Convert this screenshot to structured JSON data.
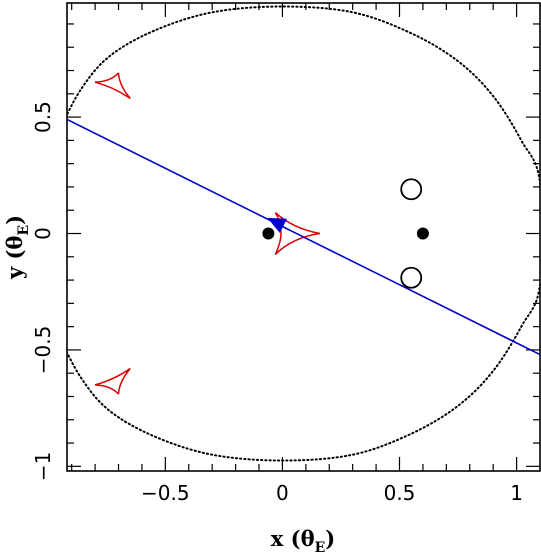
{
  "chart_data": {
    "type": "scatter",
    "title": "",
    "xlim": [
      -0.92,
      1.1
    ],
    "ylim": [
      -1.02,
      0.99
    ],
    "x_ticks": [
      {
        "value": -0.5,
        "label": "−0.5"
      },
      {
        "value": 0,
        "label": "0"
      },
      {
        "value": 0.5,
        "label": "0.5"
      },
      {
        "value": 1,
        "label": "1"
      }
    ],
    "y_ticks": [
      {
        "value": -1,
        "label": "−1"
      },
      {
        "value": -0.5,
        "label": "−0.5"
      },
      {
        "value": 0,
        "label": "0"
      },
      {
        "value": 0.5,
        "label": "0.5"
      }
    ],
    "xlabel": {
      "main": "x (θ",
      "sub": "E",
      "close": ")"
    },
    "ylabel": {
      "main": "y (θ",
      "sub": "E",
      "close": ")"
    },
    "lens_positions": [
      {
        "x": -0.06,
        "y": 0.0
      },
      {
        "x": 0.6,
        "y": 0.0
      }
    ],
    "open_circles": [
      {
        "x": 0.55,
        "y": 0.19
      },
      {
        "x": 0.55,
        "y": -0.19
      }
    ],
    "trajectory": {
      "color": "#0000cc",
      "points": [
        [
          -0.92,
          0.49
        ],
        [
          1.1,
          -0.52
        ]
      ],
      "arrow": {
        "x": -0.03,
        "y": 0.05
      }
    },
    "caustics": [
      {
        "name": "central",
        "color": "#dd0000",
        "cusps": [
          [
            -0.03,
            0.09
          ],
          [
            0.16,
            0.0
          ],
          [
            -0.03,
            -0.09
          ],
          [
            -0.01,
            0.02
          ]
        ]
      },
      {
        "name": "upper",
        "color": "#dd0000",
        "cusps": [
          [
            -0.7,
            0.69
          ],
          [
            -0.8,
            0.65
          ],
          [
            -0.65,
            0.58
          ]
        ]
      },
      {
        "name": "lower",
        "color": "#dd0000",
        "cusps": [
          [
            -0.7,
            -0.69
          ],
          [
            -0.8,
            -0.65
          ],
          [
            -0.65,
            -0.58
          ]
        ]
      }
    ],
    "critical_curve": {
      "style": "dotted",
      "color": "#000000",
      "points": [
        [
          -0.95,
          0.45
        ],
        [
          -0.86,
          0.62
        ],
        [
          -0.74,
          0.76
        ],
        [
          -0.55,
          0.87
        ],
        [
          -0.3,
          0.95
        ],
        [
          0.0,
          0.975
        ],
        [
          0.3,
          0.95
        ],
        [
          0.55,
          0.86
        ],
        [
          0.75,
          0.74
        ],
        [
          0.9,
          0.59
        ],
        [
          1.02,
          0.4
        ],
        [
          1.1,
          0.22
        ],
        [
          1.1,
          -0.22
        ],
        [
          1.02,
          -0.4
        ],
        [
          0.9,
          -0.59
        ],
        [
          0.75,
          -0.74
        ],
        [
          0.55,
          -0.86
        ],
        [
          0.3,
          -0.95
        ],
        [
          0.0,
          -0.975
        ],
        [
          -0.3,
          -0.95
        ],
        [
          -0.55,
          -0.87
        ],
        [
          -0.74,
          -0.76
        ],
        [
          -0.86,
          -0.62
        ],
        [
          -0.95,
          -0.45
        ]
      ]
    },
    "grid": false,
    "legend": "none"
  }
}
